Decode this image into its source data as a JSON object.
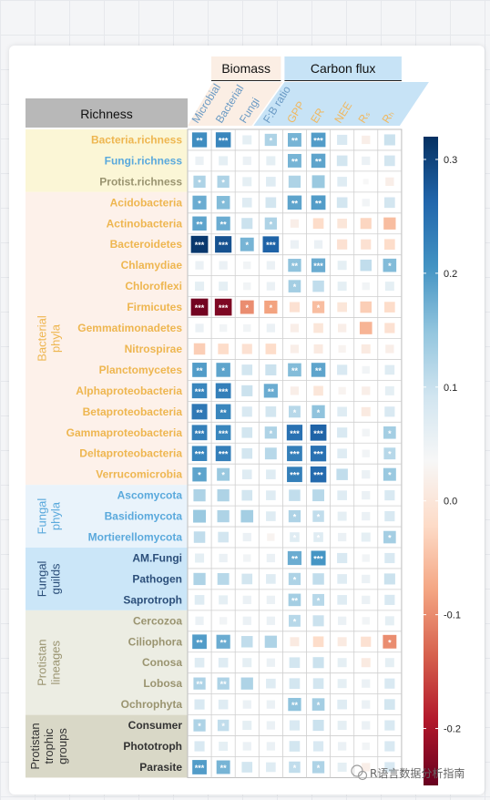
{
  "chart_data": {
    "type": "heatmap",
    "column_groups": [
      {
        "name": "Biomass",
        "color": "#fbeee4",
        "columns": [
          "Microbial",
          "Bacterial",
          "Fungi",
          "F:B ratio"
        ]
      },
      {
        "name": "Carbon flux",
        "color": "#c7e3f6",
        "columns": [
          "GPP",
          "ER",
          "NEE",
          "Rₛ",
          "Rₕ"
        ]
      }
    ],
    "row_header": "Richness",
    "columns": [
      "Microbial",
      "Bacterial",
      "Fungi",
      "F:B ratio",
      "GPP",
      "ER",
      "NEE",
      "Rₛ",
      "Rₕ"
    ],
    "column_label_colors": [
      "#6a9ac4",
      "#6a9ac4",
      "#6a9ac4",
      "#6a9ac4",
      "#f0b860",
      "#f0b860",
      "#f0b860",
      "#f0b860",
      "#f0b860"
    ],
    "row_groups": [
      {
        "name": "",
        "color": "#fbf6d6",
        "label_color": "#777777",
        "rows": [
          {
            "label": "Bacteria.richness",
            "color": "#eeb650"
          },
          {
            "label": "Fungi.richness",
            "color": "#5aa9dc"
          },
          {
            "label": "Protist.richness",
            "color": "#9a9470"
          }
        ]
      },
      {
        "name": "Bacterial phyla",
        "color": "#fdf1ea",
        "label_color": "#eeb650",
        "rows": [
          {
            "label": "Acidobacteria",
            "color": "#eeb650"
          },
          {
            "label": "Actinobacteria",
            "color": "#eeb650"
          },
          {
            "label": "Bacteroidetes",
            "color": "#eeb650"
          },
          {
            "label": "Chlamydiae",
            "color": "#eeb650"
          },
          {
            "label": "Chloroflexi",
            "color": "#eeb650"
          },
          {
            "label": "Firmicutes",
            "color": "#eeb650"
          },
          {
            "label": "Gemmatimonadetes",
            "color": "#eeb650"
          },
          {
            "label": "Nitrospirae",
            "color": "#eeb650"
          },
          {
            "label": "Planctomycetes",
            "color": "#eeb650"
          },
          {
            "label": "Alphaproteobacteria",
            "color": "#eeb650"
          },
          {
            "label": "Betaproteobacteria",
            "color": "#eeb650"
          },
          {
            "label": "Gammaproteobacteria",
            "color": "#eeb650"
          },
          {
            "label": "Deltaproteobacteria",
            "color": "#eeb650"
          },
          {
            "label": "Verrucomicrobia",
            "color": "#eeb650"
          }
        ]
      },
      {
        "name": "Fungal phyla",
        "color": "#e9f3fb",
        "label_color": "#5aa9dc",
        "rows": [
          {
            "label": "Ascomycota",
            "color": "#5aa9dc"
          },
          {
            "label": "Basidiomycota",
            "color": "#5aa9dc"
          },
          {
            "label": "Mortierellomycota",
            "color": "#5aa9dc"
          }
        ]
      },
      {
        "name": "Fungal guilds",
        "color": "#cbe6f8",
        "label_color": "#2c4f7a",
        "rows": [
          {
            "label": "AM.Fungi",
            "color": "#2c4f7a"
          },
          {
            "label": "Pathogen",
            "color": "#2c4f7a"
          },
          {
            "label": "Saprotroph",
            "color": "#2c4f7a"
          }
        ]
      },
      {
        "name": "Protistan lineages",
        "color": "#ecede3",
        "label_color": "#9a9470",
        "rows": [
          {
            "label": "Cercozoa",
            "color": "#9a9470"
          },
          {
            "label": "Ciliophora",
            "color": "#9a9470"
          },
          {
            "label": "Conosa",
            "color": "#9a9470"
          },
          {
            "label": "Lobosa",
            "color": "#9a9470"
          },
          {
            "label": "Ochrophyta",
            "color": "#9a9470"
          }
        ]
      },
      {
        "name": "Protistan trophic groups",
        "color": "#d9d8c7",
        "label_color": "#333333",
        "rows": [
          {
            "label": "Consumer",
            "color": "#333333"
          },
          {
            "label": "Phototroph",
            "color": "#333333"
          },
          {
            "label": "Parasite",
            "color": "#333333"
          }
        ]
      }
    ],
    "values": [
      [
        0.2,
        0.21,
        0.03,
        0.1,
        0.15,
        0.18,
        0.05,
        -0.02,
        0.07
      ],
      [
        0.02,
        0.03,
        0.02,
        0.03,
        0.15,
        0.17,
        0.06,
        0.02,
        0.06
      ],
      [
        0.1,
        0.1,
        0.03,
        0.04,
        0.1,
        0.12,
        0.04,
        0.0,
        -0.02
      ],
      [
        0.16,
        0.14,
        0.04,
        0.06,
        0.17,
        0.18,
        0.06,
        0.01,
        0.06
      ],
      [
        0.17,
        0.16,
        0.07,
        0.1,
        -0.02,
        -0.06,
        -0.04,
        -0.07,
        -0.1
      ],
      [
        0.31,
        0.28,
        0.15,
        0.26,
        0.02,
        0.02,
        -0.05,
        -0.05,
        -0.06
      ],
      [
        0.02,
        0.02,
        0.01,
        0.02,
        0.13,
        0.16,
        0.03,
        0.08,
        0.14
      ],
      [
        0.03,
        0.03,
        0.01,
        0.02,
        0.11,
        0.08,
        0.03,
        0.01,
        0.03
      ],
      [
        -0.31,
        -0.3,
        -0.15,
        -0.13,
        -0.05,
        -0.1,
        -0.04,
        -0.08,
        -0.06
      ],
      [
        0.02,
        0.01,
        0.01,
        0.02,
        -0.02,
        -0.04,
        -0.02,
        -0.11,
        -0.05
      ],
      [
        -0.08,
        -0.06,
        -0.05,
        -0.06,
        -0.02,
        -0.03,
        -0.01,
        -0.03,
        -0.02
      ],
      [
        0.18,
        0.17,
        0.06,
        0.07,
        0.14,
        0.17,
        0.05,
        0.01,
        0.04
      ],
      [
        0.21,
        0.22,
        0.07,
        0.16,
        -0.02,
        -0.04,
        -0.01,
        -0.02,
        0.03
      ],
      [
        0.23,
        0.21,
        0.05,
        0.06,
        0.09,
        0.13,
        0.04,
        -0.03,
        0.05
      ],
      [
        0.22,
        0.21,
        0.06,
        0.1,
        0.24,
        0.26,
        0.05,
        0.01,
        0.11
      ],
      [
        0.21,
        0.22,
        0.06,
        0.09,
        0.22,
        0.24,
        0.04,
        0.01,
        0.09
      ],
      [
        0.17,
        0.12,
        0.04,
        0.04,
        0.22,
        0.25,
        0.08,
        0.02,
        0.12
      ],
      [
        0.1,
        0.1,
        0.06,
        0.04,
        0.08,
        0.09,
        0.04,
        0.02,
        0.05
      ],
      [
        0.12,
        0.1,
        0.11,
        0.04,
        0.1,
        0.08,
        0.03,
        0.02,
        0.05
      ],
      [
        0.08,
        0.06,
        0.02,
        -0.01,
        0.04,
        0.04,
        0.02,
        0.03,
        0.11
      ],
      [
        0.03,
        0.02,
        0.01,
        0.02,
        0.16,
        0.19,
        0.05,
        0.01,
        0.05
      ],
      [
        0.1,
        0.09,
        0.06,
        0.04,
        0.1,
        0.08,
        0.04,
        0.02,
        0.07
      ],
      [
        0.04,
        0.03,
        0.02,
        0.02,
        0.11,
        0.09,
        0.04,
        0.02,
        0.05
      ],
      [
        0.02,
        0.01,
        0.02,
        0.02,
        0.09,
        0.07,
        0.02,
        0.01,
        0.03
      ],
      [
        0.18,
        0.16,
        0.08,
        0.1,
        -0.03,
        -0.06,
        -0.03,
        -0.05,
        -0.15
      ],
      [
        0.04,
        0.04,
        0.03,
        0.02,
        0.06,
        0.07,
        0.03,
        -0.03,
        0.03
      ],
      [
        0.1,
        0.1,
        0.1,
        0.04,
        0.06,
        0.06,
        0.03,
        0.02,
        0.05
      ],
      [
        0.05,
        0.04,
        0.02,
        0.02,
        0.13,
        0.11,
        0.04,
        0.02,
        0.06
      ],
      [
        0.1,
        0.08,
        0.03,
        0.02,
        0.05,
        0.07,
        0.03,
        0.02,
        0.05
      ],
      [
        0.05,
        0.03,
        0.02,
        0.02,
        0.06,
        0.05,
        0.02,
        0.01,
        0.05
      ],
      [
        0.18,
        0.15,
        0.06,
        0.04,
        0.08,
        0.1,
        0.03,
        -0.02,
        0.05
      ]
    ],
    "stars": [
      [
        "**",
        "***",
        "",
        "*",
        "**",
        "***",
        "",
        "",
        ""
      ],
      [
        "",
        "",
        "",
        "",
        "**",
        "**",
        "",
        "",
        ""
      ],
      [
        "*",
        "*",
        "",
        "",
        "",
        "",
        "",
        "",
        ""
      ],
      [
        "*",
        "*",
        "",
        "",
        "**",
        "**",
        "",
        "",
        ""
      ],
      [
        "**",
        "**",
        "",
        "*",
        "",
        "",
        "",
        "",
        ""
      ],
      [
        "***",
        "***",
        "*",
        "***",
        "",
        "",
        "",
        "",
        ""
      ],
      [
        "",
        "",
        "",
        "",
        "**",
        "***",
        "",
        "",
        "*"
      ],
      [
        "",
        "",
        "",
        "",
        "*",
        "",
        "",
        "",
        ""
      ],
      [
        "***",
        "***",
        "*",
        "*",
        "",
        "*",
        "",
        "",
        ""
      ],
      [
        "",
        "",
        "",
        "",
        "",
        "",
        "",
        "",
        ""
      ],
      [
        "",
        "",
        "",
        "",
        "",
        "",
        "",
        "",
        ""
      ],
      [
        "**",
        "*",
        "",
        "",
        "**",
        "**",
        "",
        "",
        ""
      ],
      [
        "***",
        "***",
        "",
        "**",
        "",
        "",
        "",
        "",
        ""
      ],
      [
        "**",
        "**",
        "",
        "",
        "*",
        "*",
        "",
        "",
        ""
      ],
      [
        "***",
        "***",
        "",
        "*",
        "***",
        "***",
        "",
        "",
        "*"
      ],
      [
        "***",
        "***",
        "",
        "",
        "***",
        "***",
        "",
        "",
        "*"
      ],
      [
        "*",
        "*",
        "",
        "",
        "***",
        "***",
        "",
        "",
        "*"
      ],
      [
        "",
        "",
        "",
        "",
        "",
        "",
        "",
        "",
        ""
      ],
      [
        "",
        "",
        "",
        "",
        "*",
        "*",
        "",
        "",
        ""
      ],
      [
        "",
        "",
        "",
        "",
        "*",
        "*",
        "",
        "",
        "*"
      ],
      [
        "",
        "",
        "",
        "",
        "**",
        "***",
        "",
        "",
        ""
      ],
      [
        "",
        "",
        "",
        "",
        "*",
        "",
        "",
        "",
        ""
      ],
      [
        "",
        "",
        "",
        "",
        "**",
        "*",
        "",
        "",
        ""
      ],
      [
        "",
        "",
        "",
        "",
        "*",
        "",
        "",
        "",
        ""
      ],
      [
        "**",
        "**",
        "",
        "",
        "",
        "",
        "",
        "",
        "*"
      ],
      [
        "",
        "",
        "",
        "",
        "",
        "",
        "",
        "",
        ""
      ],
      [
        "**",
        "**",
        "",
        "",
        "",
        "",
        "",
        "",
        ""
      ],
      [
        "",
        "",
        "",
        "",
        "**",
        "*",
        "",
        "",
        ""
      ],
      [
        "*",
        "*",
        "",
        "",
        "",
        "",
        "",
        "",
        ""
      ],
      [
        "",
        "",
        "",
        "",
        "",
        "",
        "",
        "",
        ""
      ],
      [
        "***",
        "**",
        "",
        "",
        "*",
        "*",
        "",
        "",
        ""
      ]
    ],
    "colorbar": {
      "min": -0.25,
      "max": 0.32,
      "ticks": [
        0.3,
        0.2,
        0.1,
        0.0,
        -0.1,
        -0.2
      ],
      "tick_labels": [
        "0.3",
        "0.2",
        "0.1",
        "0.0",
        "-0.1",
        "-0.2"
      ],
      "colors": [
        "#67001f",
        "#b2182b",
        "#d6604d",
        "#f4a582",
        "#fddbc7",
        "#f7f7f7",
        "#d1e5f0",
        "#92c5de",
        "#4393c3",
        "#2166ac",
        "#053061"
      ]
    }
  },
  "watermark": "R语言数据分析指南"
}
